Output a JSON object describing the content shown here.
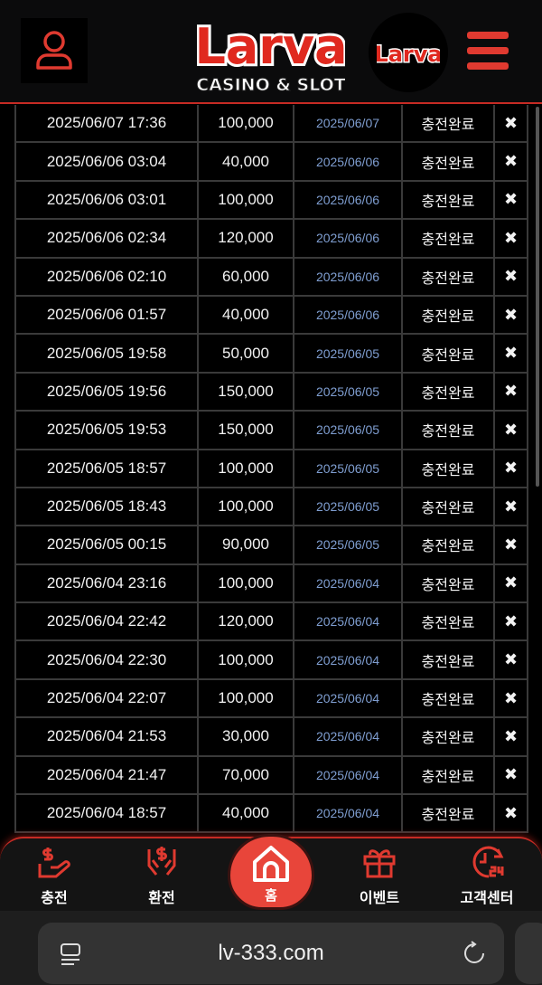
{
  "header": {
    "logo_text": "Larva",
    "logo_subtitle": "CASINO & SLOT",
    "user_icon": "user-icon",
    "menu_icon": "hamburger-icon"
  },
  "colors": {
    "accent": "#e03a30",
    "date_blue": "#7f9ed1"
  },
  "rows": [
    {
      "datetime": "2025/06/07 17:36",
      "amount": "100,000",
      "date": "2025/06/07",
      "status": "충전완료",
      "action": "✖"
    },
    {
      "datetime": "2025/06/06 03:04",
      "amount": "40,000",
      "date": "2025/06/06",
      "status": "충전완료",
      "action": "✖"
    },
    {
      "datetime": "2025/06/06 03:01",
      "amount": "100,000",
      "date": "2025/06/06",
      "status": "충전완료",
      "action": "✖"
    },
    {
      "datetime": "2025/06/06 02:34",
      "amount": "120,000",
      "date": "2025/06/06",
      "status": "충전완료",
      "action": "✖"
    },
    {
      "datetime": "2025/06/06 02:10",
      "amount": "60,000",
      "date": "2025/06/06",
      "status": "충전완료",
      "action": "✖"
    },
    {
      "datetime": "2025/06/06 01:57",
      "amount": "40,000",
      "date": "2025/06/06",
      "status": "충전완료",
      "action": "✖"
    },
    {
      "datetime": "2025/06/05 19:58",
      "amount": "50,000",
      "date": "2025/06/05",
      "status": "충전완료",
      "action": "✖"
    },
    {
      "datetime": "2025/06/05 19:56",
      "amount": "150,000",
      "date": "2025/06/05",
      "status": "충전완료",
      "action": "✖"
    },
    {
      "datetime": "2025/06/05 19:53",
      "amount": "150,000",
      "date": "2025/06/05",
      "status": "충전완료",
      "action": "✖"
    },
    {
      "datetime": "2025/06/05 18:57",
      "amount": "100,000",
      "date": "2025/06/05",
      "status": "충전완료",
      "action": "✖"
    },
    {
      "datetime": "2025/06/05 18:43",
      "amount": "100,000",
      "date": "2025/06/05",
      "status": "충전완료",
      "action": "✖"
    },
    {
      "datetime": "2025/06/05 00:15",
      "amount": "90,000",
      "date": "2025/06/05",
      "status": "충전완료",
      "action": "✖"
    },
    {
      "datetime": "2025/06/04 23:16",
      "amount": "100,000",
      "date": "2025/06/04",
      "status": "충전완료",
      "action": "✖"
    },
    {
      "datetime": "2025/06/04 22:42",
      "amount": "120,000",
      "date": "2025/06/04",
      "status": "충전완료",
      "action": "✖"
    },
    {
      "datetime": "2025/06/04 22:30",
      "amount": "100,000",
      "date": "2025/06/04",
      "status": "충전완료",
      "action": "✖"
    },
    {
      "datetime": "2025/06/04 22:07",
      "amount": "100,000",
      "date": "2025/06/04",
      "status": "충전완료",
      "action": "✖"
    },
    {
      "datetime": "2025/06/04 21:53",
      "amount": "30,000",
      "date": "2025/06/04",
      "status": "충전완료",
      "action": "✖"
    },
    {
      "datetime": "2025/06/04 21:47",
      "amount": "70,000",
      "date": "2025/06/04",
      "status": "충전완료",
      "action": "✖"
    },
    {
      "datetime": "2025/06/04 18:57",
      "amount": "40,000",
      "date": "2025/06/04",
      "status": "충전완료",
      "action": "✖"
    }
  ],
  "floating_logo_text": "Larva",
  "nav": {
    "deposit": "충전",
    "withdraw": "환전",
    "home": "홈",
    "event": "이벤트",
    "support": "고객센터"
  },
  "browser": {
    "url": "lv-333.com"
  }
}
